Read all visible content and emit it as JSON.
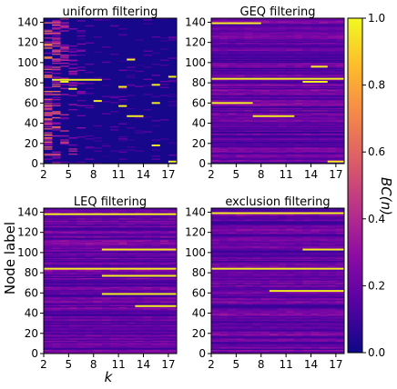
{
  "chart_data": [
    {
      "type": "heatmap",
      "title": "uniform filtering",
      "x": [
        2,
        3,
        4,
        5,
        6,
        7,
        8,
        9,
        10,
        11,
        12,
        13,
        14,
        15,
        16,
        17
      ],
      "xticks": [
        "2",
        "5",
        "8",
        "11",
        "14",
        "17"
      ],
      "yticks": [
        "0",
        "20",
        "40",
        "60",
        "80",
        "100",
        "120",
        "140"
      ],
      "ylim": [
        0,
        144
      ],
      "pattern": "sparse",
      "bright_rows": [
        {
          "y": 83,
          "k": [
            3,
            9
          ]
        },
        {
          "y": 81,
          "k": [
            4,
            5
          ]
        },
        {
          "y": 78,
          "k": [
            15,
            16
          ]
        },
        {
          "y": 76,
          "k": [
            11,
            12
          ]
        },
        {
          "y": 74,
          "k": [
            5,
            6
          ]
        },
        {
          "y": 62,
          "k": [
            8,
            9
          ]
        },
        {
          "y": 60,
          "k": [
            15,
            16
          ]
        },
        {
          "y": 57,
          "k": [
            11,
            12
          ]
        },
        {
          "y": 47,
          "k": [
            12,
            14
          ]
        },
        {
          "y": 103,
          "k": [
            12,
            13
          ]
        },
        {
          "y": 86,
          "k": [
            17,
            18
          ]
        },
        {
          "y": 18,
          "k": [
            15,
            16
          ]
        },
        {
          "y": 2,
          "k": [
            17,
            18
          ]
        }
      ]
    },
    {
      "type": "heatmap",
      "title": "GEQ filtering",
      "x": [
        2,
        3,
        4,
        5,
        6,
        7,
        8,
        9,
        10,
        11,
        12,
        13,
        14,
        15,
        16,
        17
      ],
      "xticks": [
        "2",
        "5",
        "8",
        "11",
        "14",
        "17"
      ],
      "yticks": [
        "0",
        "20",
        "40",
        "60",
        "80",
        "100",
        "120",
        "140"
      ],
      "ylim": [
        0,
        144
      ],
      "pattern": "dense",
      "bright_rows": [
        {
          "y": 139,
          "k": [
            2,
            8
          ]
        },
        {
          "y": 84,
          "k": [
            2,
            18
          ]
        },
        {
          "y": 81,
          "k": [
            13,
            16
          ]
        },
        {
          "y": 47,
          "k": [
            7,
            12
          ]
        },
        {
          "y": 60,
          "k": [
            2,
            7
          ]
        },
        {
          "y": 96,
          "k": [
            14,
            16
          ]
        },
        {
          "y": 2,
          "k": [
            16,
            18
          ]
        }
      ]
    },
    {
      "type": "heatmap",
      "title": "LEQ filtering",
      "x": [
        2,
        3,
        4,
        5,
        6,
        7,
        8,
        9,
        10,
        11,
        12,
        13,
        14,
        15,
        16,
        17
      ],
      "xticks": [
        "2",
        "5",
        "8",
        "11",
        "14",
        "17"
      ],
      "yticks": [
        "0",
        "20",
        "40",
        "60",
        "80",
        "100",
        "120",
        "140"
      ],
      "ylim": [
        0,
        144
      ],
      "pattern": "dense",
      "bright_rows": [
        {
          "y": 138,
          "k": [
            2,
            18
          ]
        },
        {
          "y": 103,
          "k": [
            9,
            18
          ]
        },
        {
          "y": 84,
          "k": [
            2,
            18
          ]
        },
        {
          "y": 77,
          "k": [
            9,
            18
          ]
        },
        {
          "y": 59,
          "k": [
            9,
            18
          ]
        },
        {
          "y": 47,
          "k": [
            13,
            18
          ]
        }
      ]
    },
    {
      "type": "heatmap",
      "title": "exclusion filtering",
      "x": [
        2,
        3,
        4,
        5,
        6,
        7,
        8,
        9,
        10,
        11,
        12,
        13,
        14,
        15,
        16,
        17
      ],
      "xticks": [
        "2",
        "5",
        "8",
        "11",
        "14",
        "17"
      ],
      "yticks": [
        "0",
        "20",
        "40",
        "60",
        "80",
        "100",
        "120",
        "140"
      ],
      "ylim": [
        0,
        144
      ],
      "pattern": "dense",
      "bright_rows": [
        {
          "y": 139,
          "k": [
            2,
            18
          ]
        },
        {
          "y": 84,
          "k": [
            2,
            18
          ]
        },
        {
          "y": 103,
          "k": [
            13,
            18
          ]
        },
        {
          "y": 62,
          "k": [
            9,
            18
          ]
        }
      ]
    }
  ],
  "labels": {
    "ylabel": "Node label",
    "xlabel": "k",
    "colorbar_label": "BC(n)"
  },
  "colorbar": {
    "colormap": "plasma",
    "range": [
      0,
      1
    ],
    "ticks": [
      "0.0",
      "0.2",
      "0.4",
      "0.6",
      "0.8",
      "1.0"
    ]
  }
}
